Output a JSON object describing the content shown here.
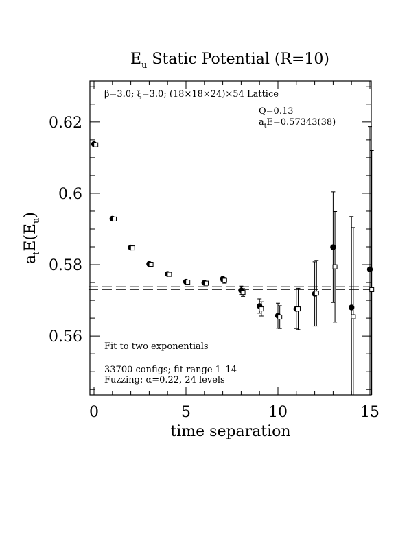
{
  "chart_data": {
    "type": "scatter",
    "title_main": "E",
    "title_sub": "u",
    "title_rest": " Static Potential (R=10)",
    "xlabel": "time separation",
    "ylabel_a": "a",
    "ylabel_t": "t",
    "ylabel_e": "E(E",
    "ylabel_u": "u",
    "ylabel_close": ")",
    "xlim": [
      0,
      15
    ],
    "ylim": [
      0.5435,
      0.6315
    ],
    "x_ticks": [
      0,
      5,
      10,
      15
    ],
    "x_tick_labels": [
      "0",
      "5",
      "10",
      "15"
    ],
    "y_ticks": [
      0.56,
      0.58,
      0.6,
      0.62
    ],
    "y_tick_labels": [
      "0.56",
      "0.58",
      "0.6",
      "0.62"
    ],
    "lattice_note": "β=3.0; ξ=3.0; (18×18×24)×54 Lattice",
    "q_note": "Q=0.13",
    "fit_result_a": "a",
    "fit_result_t": "t",
    "fit_result_rest": "E=0.57343(38)",
    "fit_note": "Fit to two exponentials",
    "configs_note": "33700 configs; fit range 1–14",
    "fuzzing_note": "Fuzzing: α=0.22, 24 levels",
    "fit": {
      "value": 0.57343,
      "error": 0.00038,
      "x_start": -0.3,
      "x_end": 15.0
    },
    "series": [
      {
        "marker": "filled-circle",
        "x": [
          0,
          1,
          2,
          3,
          4,
          5,
          6,
          7,
          8,
          9,
          10,
          11,
          12,
          13,
          14,
          15
        ],
        "y": [
          0.6138,
          0.5929,
          0.5848,
          0.5802,
          0.5774,
          0.5752,
          0.5749,
          0.576,
          0.5728,
          0.5684,
          0.5657,
          0.5676,
          0.5718,
          0.5849,
          0.568,
          0.5787
        ],
        "err": [
          0.0003,
          0.0003,
          0.0003,
          0.0003,
          0.0003,
          0.0004,
          0.0005,
          0.0008,
          0.0012,
          0.002,
          0.0035,
          0.0055,
          0.009,
          0.0155,
          0.0255,
          0.04
        ]
      },
      {
        "marker": "open-square",
        "x": [
          0.1,
          1.1,
          2.1,
          3.1,
          4.1,
          5.1,
          6.1,
          7.1,
          8.1,
          9.1,
          10.1,
          11.1,
          12.1,
          13.1,
          14.1,
          15.1
        ],
        "y": [
          0.6136,
          0.5928,
          0.5847,
          0.5801,
          0.5773,
          0.5751,
          0.5748,
          0.5756,
          0.5722,
          0.5676,
          0.5653,
          0.5676,
          0.572,
          0.5794,
          0.5654,
          0.573
        ],
        "err": [
          0.0003,
          0.0003,
          0.0003,
          0.0003,
          0.0003,
          0.0004,
          0.0005,
          0.0008,
          0.0011,
          0.002,
          0.0032,
          0.0058,
          0.0092,
          0.0155,
          0.025,
          0.039
        ]
      }
    ]
  }
}
